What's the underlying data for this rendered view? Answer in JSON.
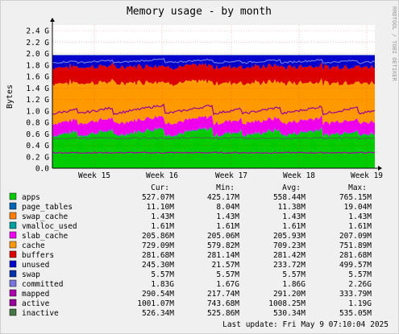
{
  "chart_data": {
    "type": "area",
    "title": "Memory usage - by month",
    "ylabel": "Bytes",
    "side_label": "RRDTOOL / TOBI OETIKER",
    "ylim": [
      0,
      2.5
    ],
    "y_unit": "G",
    "y_ticks": [
      "0.0",
      "0.2 G",
      "0.4 G",
      "0.6 G",
      "0.8 G",
      "1.0 G",
      "1.2 G",
      "1.4 G",
      "1.6 G",
      "1.8 G",
      "2.0 G",
      "2.2 G",
      "2.4 G"
    ],
    "x_ticks": [
      "Week 15",
      "Week 16",
      "Week 17",
      "Week 18",
      "Week 19"
    ],
    "grid": true,
    "legend_header": {
      "cur": "Cur:",
      "min": "Min:",
      "avg": "Avg:",
      "max": "Max:"
    },
    "series": [
      {
        "name": "apps",
        "color": "#00cc00",
        "cur": "527.07M",
        "min": "425.17M",
        "avg": "558.44M",
        "max": "765.15M",
        "approx_G": 0.56
      },
      {
        "name": "page_tables",
        "color": "#0066b3",
        "cur": "11.10M",
        "min": "8.04M",
        "avg": "11.38M",
        "max": "19.04M",
        "approx_G": 0.011
      },
      {
        "name": "swap_cache",
        "color": "#ff8000",
        "cur": "1.43M",
        "min": "1.43M",
        "avg": "1.43M",
        "max": "1.43M",
        "approx_G": 0.0014
      },
      {
        "name": "vmalloc_used",
        "color": "#00a0a0",
        "cur": "1.61M",
        "min": "1.61M",
        "avg": "1.61M",
        "max": "1.61M",
        "approx_G": 0.0016
      },
      {
        "name": "slab_cache",
        "color": "#ee00ee",
        "cur": "205.86M",
        "min": "205.06M",
        "avg": "205.93M",
        "max": "207.09M",
        "approx_G": 0.205
      },
      {
        "name": "cache",
        "color": "#ff9900",
        "cur": "729.09M",
        "min": "579.82M",
        "avg": "709.23M",
        "max": "751.89M",
        "approx_G": 0.7
      },
      {
        "name": "buffers",
        "color": "#dd0000",
        "cur": "281.68M",
        "min": "281.14M",
        "avg": "281.42M",
        "max": "281.68M",
        "approx_G": 0.28
      },
      {
        "name": "unused",
        "color": "#0000cc",
        "cur": "245.30M",
        "min": "21.57M",
        "avg": "233.72M",
        "max": "499.57M",
        "approx_G": 0.234
      },
      {
        "name": "swap",
        "color": "#0033aa",
        "cur": "5.57M",
        "min": "5.57M",
        "avg": "5.57M",
        "max": "5.57M",
        "approx_G": 0.0056
      },
      {
        "name": "committed",
        "color": "#7777dd",
        "cur": "1.83G",
        "min": "1.67G",
        "avg": "1.86G",
        "max": "2.26G"
      },
      {
        "name": "mapped",
        "color": "#aa00aa",
        "cur": "290.54M",
        "min": "217.74M",
        "avg": "291.20M",
        "max": "333.79M"
      },
      {
        "name": "active",
        "color": "#990099",
        "cur": "1001.07M",
        "min": "743.68M",
        "avg": "1008.25M",
        "max": "1.19G"
      },
      {
        "name": "inactive",
        "color": "#447744",
        "cur": "526.34M",
        "min": "525.86M",
        "avg": "530.34M",
        "max": "535.05M"
      }
    ],
    "last_update": "Last update:  Fri May  9 07:10:04 2025"
  }
}
